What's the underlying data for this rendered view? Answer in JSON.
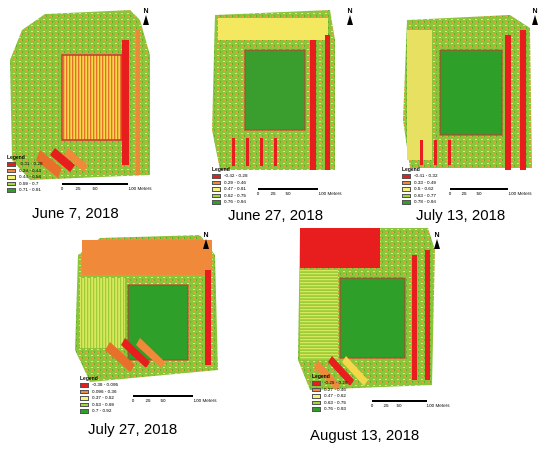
{
  "scale_unit": "Meters",
  "north_label": "N",
  "legend_title": "Legend",
  "class_colors": [
    "#e81e1e",
    "#f08a3a",
    "#f4f47a",
    "#a4d83a",
    "#2ea02a"
  ],
  "panels": [
    {
      "date": "June 7, 2018",
      "legend": [
        "-0.31 - 0.28",
        "0.29 - 0.43",
        "0.44 - 0.58",
        "0.59 - 0.7",
        "0.71 - 0.91"
      ],
      "scale_ticks": [
        "0",
        "25",
        "50",
        "100 Meters"
      ]
    },
    {
      "date": "June 27, 2018",
      "legend": [
        "-0.42 - 0.28",
        "0.29 - 0.46",
        "0.47 - 0.61",
        "0.62 - 0.75",
        "0.76 - 0.94"
      ],
      "scale_ticks": [
        "0",
        "25",
        "50",
        "100 Meters"
      ]
    },
    {
      "date": "July 13, 2018",
      "legend": [
        "-0.41 - 0.32",
        "0.33 - 0.49",
        "0.5 - 0.62",
        "0.63 - 0.77",
        "0.78 - 0.94"
      ],
      "scale_ticks": [
        "0",
        "25",
        "50",
        "100 Meters"
      ]
    },
    {
      "date": "July 27, 2018",
      "legend": [
        "-0.38 - 0.095",
        "0.096 - 0.36",
        "0.37 - 0.52",
        "0.53 - 0.69",
        "0.7 - 0.92"
      ],
      "scale_ticks": [
        "0",
        "25",
        "50",
        "100 Meters"
      ]
    },
    {
      "date": "August 13, 2018",
      "legend": [
        "-0.25 - 0.26",
        "0.27 - 0.46",
        "0.47 - 0.62",
        "0.63 - 0.75",
        "0.76 - 0.93"
      ],
      "scale_ticks": [
        "0",
        "25",
        "50",
        "100 Meters"
      ]
    }
  ]
}
